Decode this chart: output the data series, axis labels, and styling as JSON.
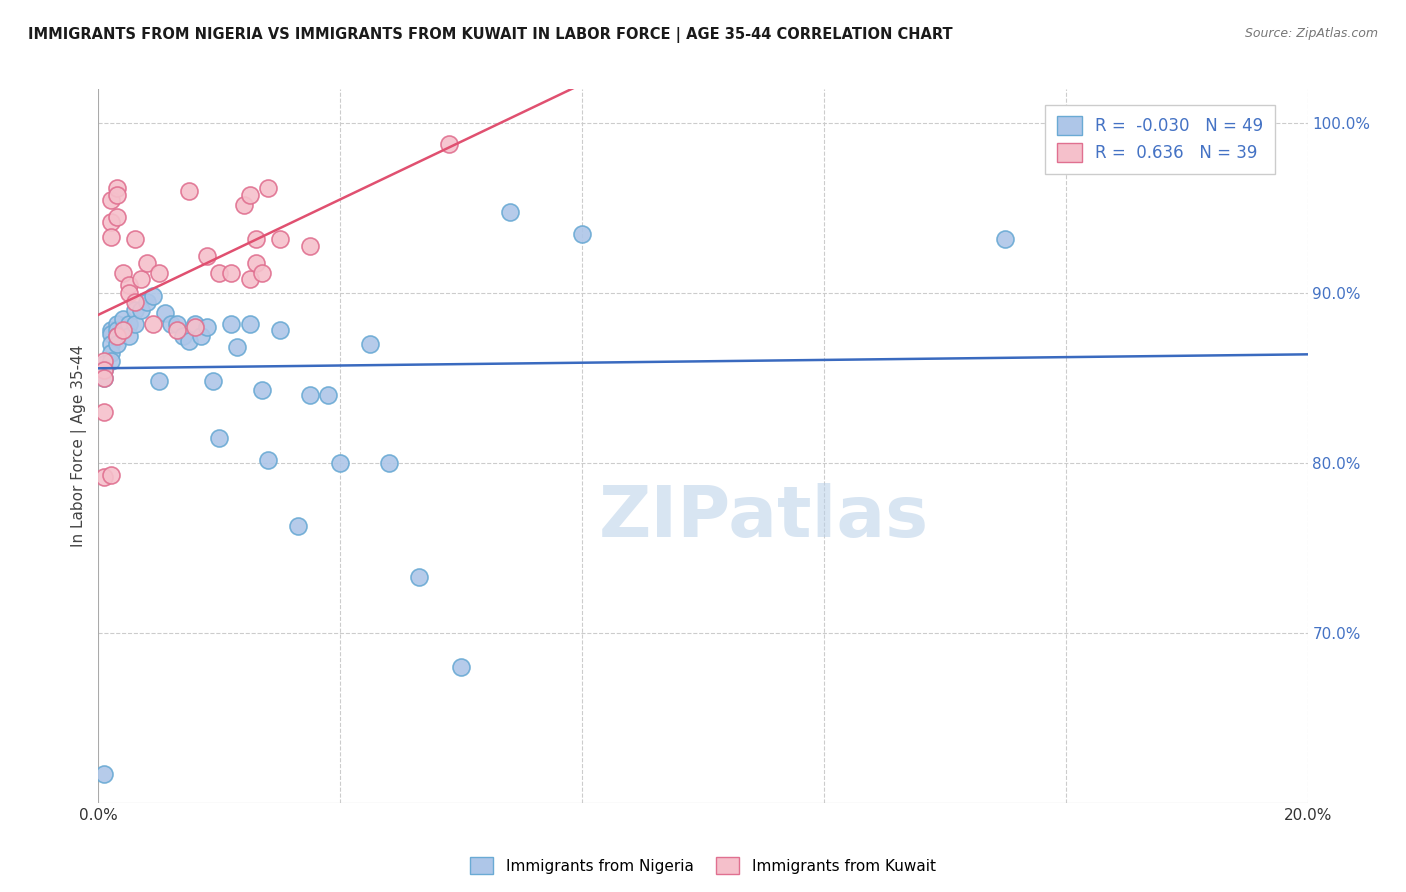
{
  "title": "IMMIGRANTS FROM NIGERIA VS IMMIGRANTS FROM KUWAIT IN LABOR FORCE | AGE 35-44 CORRELATION CHART",
  "source": "Source: ZipAtlas.com",
  "ylabel": "In Labor Force | Age 35-44",
  "x_min": 0.0,
  "x_max": 0.2,
  "y_min": 0.6,
  "y_max": 1.02,
  "x_ticks": [
    0.0,
    0.04,
    0.08,
    0.12,
    0.16,
    0.2
  ],
  "x_tick_labels": [
    "0.0%",
    "",
    "",
    "",
    "",
    "20.0%"
  ],
  "y_ticks": [
    0.7,
    0.8,
    0.9,
    1.0
  ],
  "y_tick_labels": [
    "70.0%",
    "80.0%",
    "90.0%",
    "100.0%"
  ],
  "nigeria_color": "#aec6e8",
  "nigeria_edge_color": "#6aaad4",
  "kuwait_color": "#f5c0cb",
  "kuwait_edge_color": "#e07090",
  "nigeria_R": -0.03,
  "nigeria_N": 49,
  "kuwait_R": 0.636,
  "kuwait_N": 39,
  "nigeria_line_color": "#3a6abf",
  "kuwait_line_color": "#e05070",
  "legend_nigeria_label": "Immigrants from Nigeria",
  "legend_kuwait_label": "Immigrants from Kuwait",
  "watermark": "ZIPatlas",
  "nigeria_x": [
    0.001,
    0.001,
    0.001,
    0.002,
    0.002,
    0.002,
    0.002,
    0.002,
    0.003,
    0.003,
    0.003,
    0.003,
    0.004,
    0.005,
    0.005,
    0.006,
    0.006,
    0.007,
    0.008,
    0.009,
    0.01,
    0.011,
    0.012,
    0.013,
    0.014,
    0.015,
    0.016,
    0.017,
    0.018,
    0.019,
    0.02,
    0.022,
    0.023,
    0.025,
    0.027,
    0.028,
    0.03,
    0.033,
    0.035,
    0.038,
    0.04,
    0.045,
    0.048,
    0.053,
    0.06,
    0.068,
    0.08,
    0.15,
    0.001
  ],
  "nigeria_y": [
    0.858,
    0.855,
    0.85,
    0.878,
    0.876,
    0.87,
    0.865,
    0.86,
    0.882,
    0.878,
    0.875,
    0.87,
    0.885,
    0.882,
    0.875,
    0.89,
    0.882,
    0.89,
    0.895,
    0.898,
    0.848,
    0.888,
    0.882,
    0.882,
    0.875,
    0.872,
    0.882,
    0.875,
    0.88,
    0.848,
    0.815,
    0.882,
    0.868,
    0.882,
    0.843,
    0.802,
    0.878,
    0.763,
    0.84,
    0.84,
    0.8,
    0.87,
    0.8,
    0.733,
    0.68,
    0.948,
    0.935,
    0.932,
    0.617
  ],
  "kuwait_x": [
    0.001,
    0.001,
    0.001,
    0.001,
    0.001,
    0.002,
    0.002,
    0.002,
    0.002,
    0.003,
    0.003,
    0.003,
    0.003,
    0.004,
    0.004,
    0.005,
    0.005,
    0.006,
    0.006,
    0.007,
    0.008,
    0.009,
    0.01,
    0.013,
    0.015,
    0.016,
    0.018,
    0.02,
    0.022,
    0.024,
    0.025,
    0.025,
    0.026,
    0.026,
    0.027,
    0.028,
    0.03,
    0.035,
    0.058
  ],
  "kuwait_y": [
    0.86,
    0.855,
    0.85,
    0.83,
    0.792,
    0.955,
    0.942,
    0.933,
    0.793,
    0.962,
    0.958,
    0.945,
    0.875,
    0.912,
    0.878,
    0.905,
    0.9,
    0.932,
    0.895,
    0.908,
    0.918,
    0.882,
    0.912,
    0.878,
    0.96,
    0.88,
    0.922,
    0.912,
    0.912,
    0.952,
    0.958,
    0.908,
    0.932,
    0.918,
    0.912,
    0.962,
    0.932,
    0.928,
    0.988
  ]
}
